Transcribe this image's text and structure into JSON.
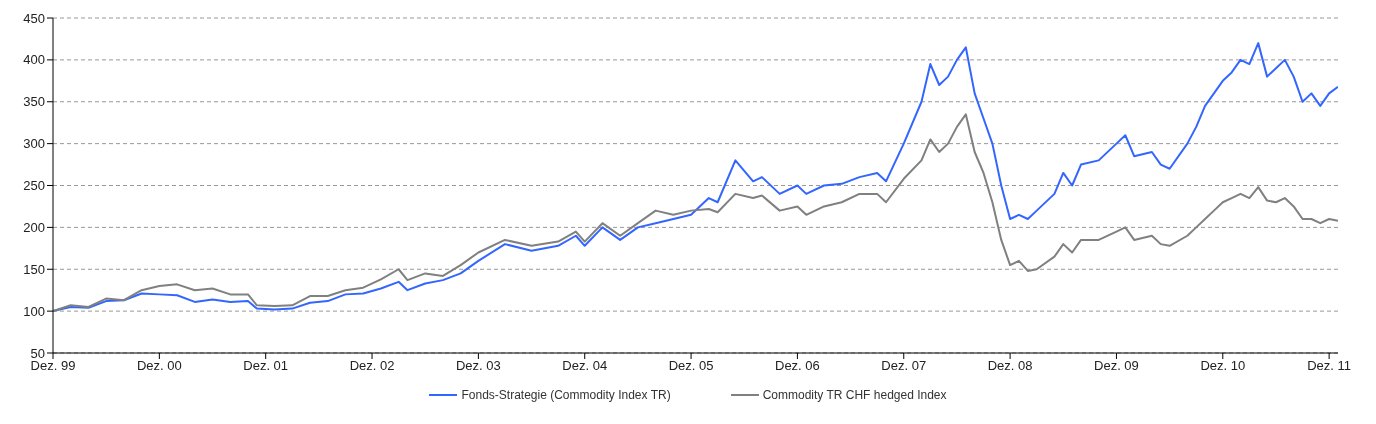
{
  "chart_data": {
    "type": "line",
    "x": [
      "1999-12",
      "2000-02",
      "2000-04",
      "2000-06",
      "2000-08",
      "2000-10",
      "2000-12",
      "2001-02",
      "2001-04",
      "2001-06",
      "2001-08",
      "2001-10",
      "2001-11",
      "2002-01",
      "2002-03",
      "2002-05",
      "2002-07",
      "2002-09",
      "2002-11",
      "2003-01",
      "2003-03",
      "2003-04",
      "2003-06",
      "2003-08",
      "2003-10",
      "2003-12",
      "2004-03",
      "2004-06",
      "2004-09",
      "2004-11",
      "2004-12",
      "2005-02",
      "2005-04",
      "2005-06",
      "2005-08",
      "2005-10",
      "2005-12",
      "2006-02",
      "2006-03",
      "2006-05",
      "2006-07",
      "2006-08",
      "2006-10",
      "2006-12",
      "2007-01",
      "2007-03",
      "2007-05",
      "2007-07",
      "2007-09",
      "2007-10",
      "2007-12",
      "2008-02",
      "2008-03",
      "2008-04",
      "2008-05",
      "2008-06",
      "2008-07",
      "2008-08",
      "2008-09",
      "2008-10",
      "2008-11",
      "2008-12",
      "2009-01",
      "2009-02",
      "2009-03",
      "2009-05",
      "2009-06",
      "2009-07",
      "2009-08",
      "2009-10",
      "2009-12",
      "2010-01",
      "2010-02",
      "2010-04",
      "2010-05",
      "2010-06",
      "2010-08",
      "2010-09",
      "2010-10",
      "2010-11",
      "2010-12",
      "2011-01",
      "2011-02",
      "2011-03",
      "2011-04",
      "2011-05",
      "2011-06",
      "2011-07",
      "2011-08",
      "2011-09",
      "2011-10",
      "2011-11",
      "2011-12",
      "2012-01"
    ],
    "series": [
      {
        "name": "Fonds-Strategie (Commodity Index TR)",
        "color": "#3366ff",
        "values": [
          100,
          105,
          104,
          112,
          113,
          121,
          120,
          119,
          111,
          114,
          111,
          112,
          103,
          102,
          103,
          110,
          112,
          120,
          121,
          127,
          135,
          125,
          133,
          137,
          145,
          160,
          180,
          172,
          178,
          190,
          178,
          200,
          185,
          200,
          205,
          210,
          215,
          235,
          230,
          280,
          255,
          260,
          240,
          250,
          240,
          250,
          252,
          260,
          265,
          255,
          300,
          350,
          395,
          370,
          380,
          400,
          415,
          360,
          330,
          300,
          250,
          210,
          215,
          210,
          220,
          240,
          265,
          250,
          275,
          280,
          300,
          310,
          285,
          290,
          275,
          270,
          300,
          320,
          345,
          360,
          375,
          385,
          400,
          395,
          420,
          380,
          390,
          400,
          380,
          350,
          360,
          345,
          360,
          368
        ]
      },
      {
        "name": "Commodity TR CHF hedged Index",
        "color": "#808080",
        "values": [
          100,
          107,
          105,
          115,
          113,
          125,
          130,
          132,
          125,
          127,
          120,
          120,
          107,
          106,
          107,
          118,
          118,
          125,
          128,
          138,
          150,
          137,
          145,
          142,
          155,
          170,
          185,
          178,
          183,
          195,
          183,
          205,
          190,
          205,
          220,
          215,
          220,
          222,
          218,
          240,
          235,
          238,
          220,
          225,
          215,
          225,
          230,
          240,
          240,
          230,
          258,
          280,
          305,
          290,
          300,
          320,
          335,
          290,
          265,
          230,
          185,
          155,
          160,
          148,
          150,
          165,
          180,
          170,
          185,
          185,
          195,
          200,
          185,
          190,
          180,
          178,
          190,
          200,
          210,
          220,
          230,
          235,
          240,
          235,
          248,
          232,
          230,
          235,
          225,
          210,
          210,
          205,
          210,
          208
        ]
      }
    ],
    "xlim": [
      "1999-12",
      "2012-01"
    ],
    "xticks": [
      {
        "value": "1999-12",
        "label": "Dez. 99"
      },
      {
        "value": "2000-12",
        "label": "Dez. 00"
      },
      {
        "value": "2001-12",
        "label": "Dez. 01"
      },
      {
        "value": "2002-12",
        "label": "Dez. 02"
      },
      {
        "value": "2003-12",
        "label": "Dez. 03"
      },
      {
        "value": "2004-12",
        "label": "Dez. 04"
      },
      {
        "value": "2005-12",
        "label": "Dez. 05"
      },
      {
        "value": "2006-12",
        "label": "Dez. 06"
      },
      {
        "value": "2007-12",
        "label": "Dez. 07"
      },
      {
        "value": "2008-12",
        "label": "Dez. 08"
      },
      {
        "value": "2009-12",
        "label": "Dez. 09"
      },
      {
        "value": "2010-12",
        "label": "Dez. 10"
      },
      {
        "value": "2011-12",
        "label": "Dez. 11"
      }
    ],
    "ylim": [
      50,
      450
    ],
    "yticks": [
      50,
      100,
      150,
      200,
      250,
      300,
      350,
      400,
      450
    ],
    "grid": "y",
    "legend": "bottom",
    "marker": "none",
    "line_style": "solid"
  }
}
